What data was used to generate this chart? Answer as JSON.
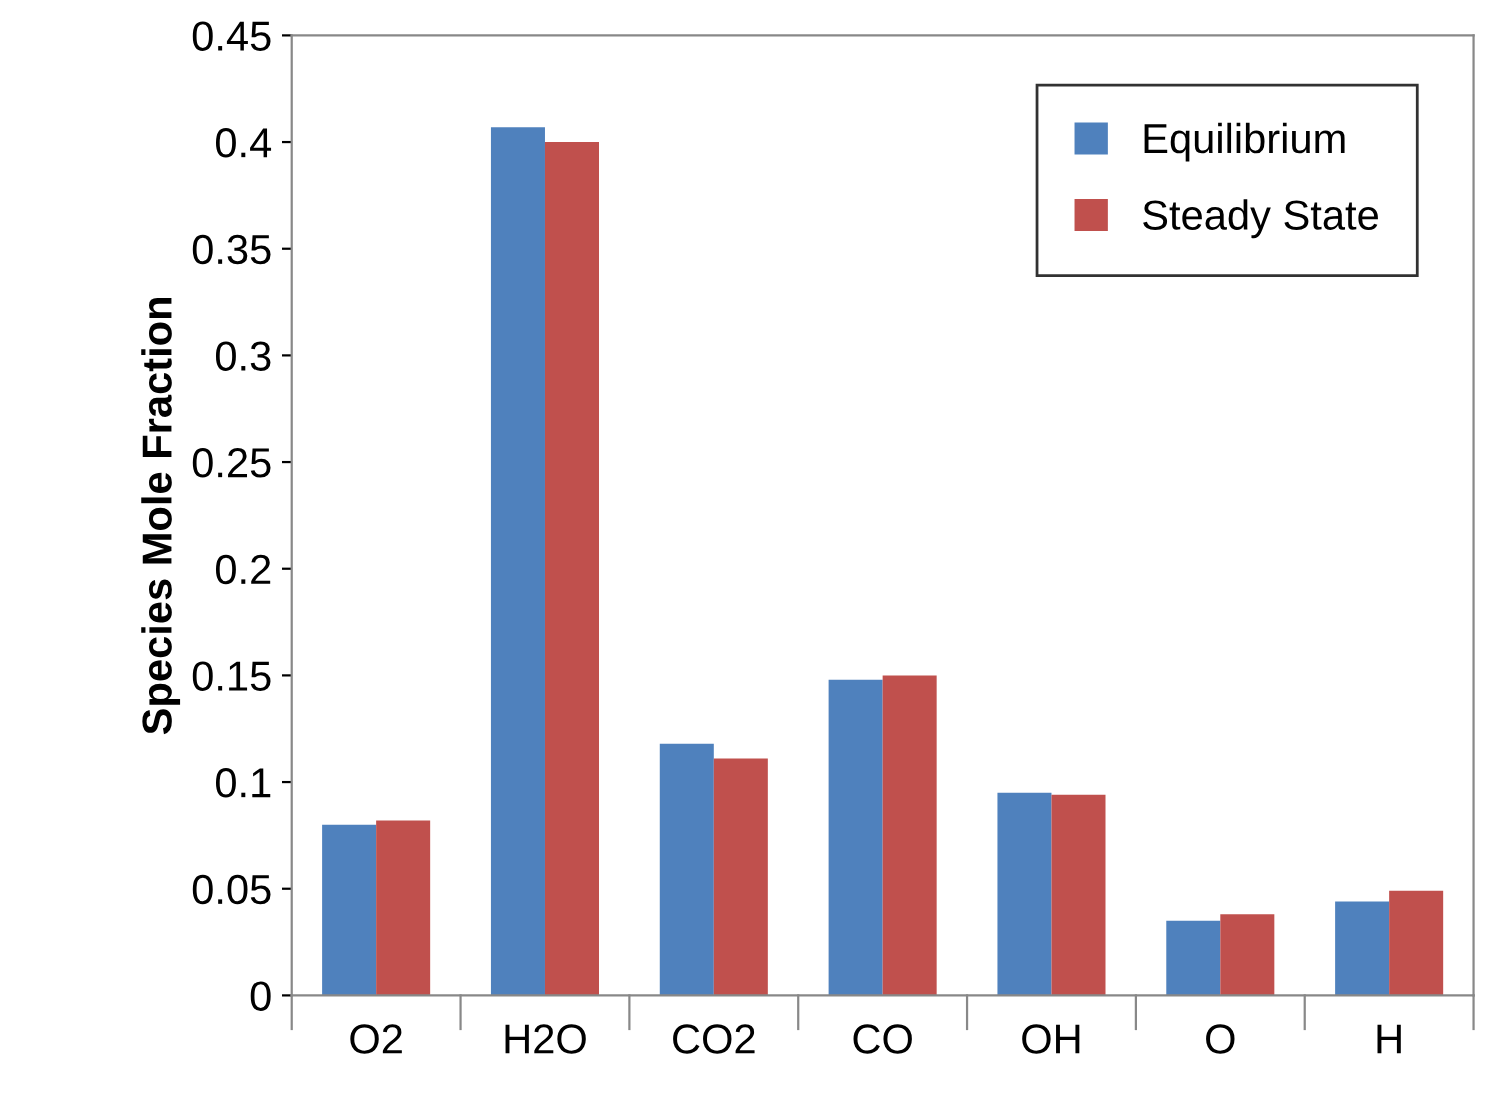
{
  "chart_data": {
    "type": "bar",
    "ylabel": "Species Mole Fraction",
    "categories": [
      "O2",
      "H2O",
      "CO2",
      "CO",
      "OH",
      "O",
      "H"
    ],
    "series": [
      {
        "name": "Equilibrium",
        "color": "#4f81bd",
        "values": [
          0.08,
          0.407,
          0.118,
          0.148,
          0.095,
          0.035,
          0.044
        ]
      },
      {
        "name": "Steady State",
        "color": "#c0504d",
        "values": [
          0.082,
          0.4,
          0.111,
          0.15,
          0.094,
          0.038,
          0.049
        ]
      }
    ],
    "ylim": [
      0,
      0.45
    ],
    "yticks": [
      0,
      {
        "value": 0.05,
        "label": "0.05"
      },
      {
        "value": 0.1,
        "label": "0.1"
      },
      {
        "value": 0.15,
        "label": "0.15"
      },
      {
        "value": 0.2,
        "label": "0.2"
      },
      {
        "value": 0.25,
        "label": "0.25"
      },
      {
        "value": 0.3,
        "label": "0.3"
      },
      {
        "value": 0.35,
        "label": "0.35"
      },
      {
        "value": 0.4,
        "label": "0.4"
      },
      {
        "value": 0.45,
        "label": "0.45"
      }
    ],
    "grid": false,
    "legend": "top right"
  }
}
